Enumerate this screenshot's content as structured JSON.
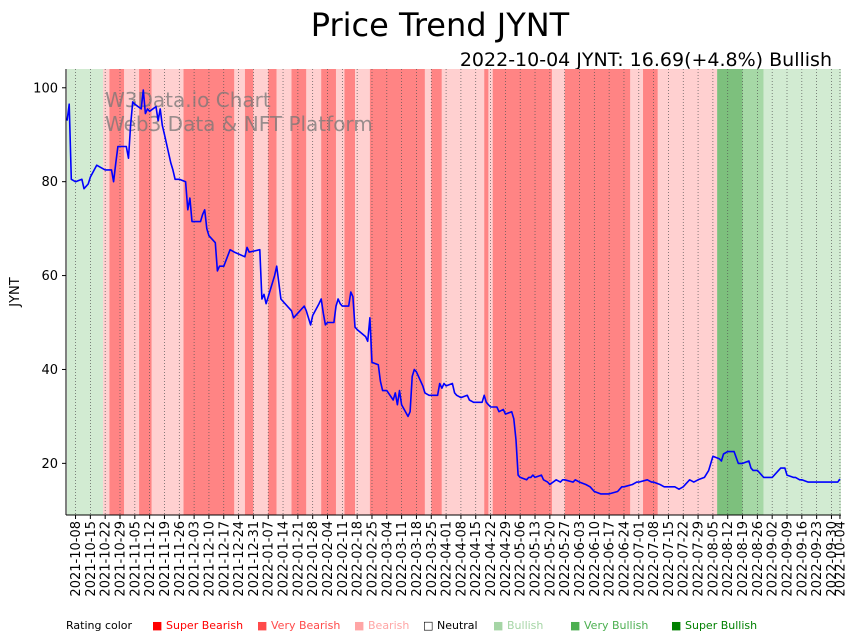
{
  "chart_data": {
    "type": "line",
    "title": "Price Trend JYNT",
    "subtitle": "2022-10-04 JYNT: 16.69(+4.8%) Bullish",
    "ylabel": "JYNT",
    "xlabel": "",
    "ylim": [
      9,
      104
    ],
    "yticks": [
      20,
      40,
      60,
      80,
      100
    ],
    "watermark": [
      "W3Data.io Chart",
      "Web3 Data & NFT Platform"
    ],
    "x_start": "2021-10-04",
    "x_end": "2022-10-04",
    "xticks": [
      "2021-10-08",
      "2021-10-15",
      "2021-10-22",
      "2021-10-29",
      "2021-11-05",
      "2021-11-12",
      "2021-11-19",
      "2021-11-26",
      "2021-12-03",
      "2021-12-10",
      "2021-12-17",
      "2021-12-24",
      "2021-12-31",
      "2022-01-07",
      "2022-01-14",
      "2022-01-21",
      "2022-01-28",
      "2022-02-04",
      "2022-02-11",
      "2022-02-18",
      "2022-02-25",
      "2022-03-04",
      "2022-03-11",
      "2022-03-18",
      "2022-03-25",
      "2022-04-01",
      "2022-04-08",
      "2022-04-15",
      "2022-04-22",
      "2022-04-29",
      "2022-05-06",
      "2022-05-13",
      "2022-05-20",
      "2022-05-27",
      "2022-06-03",
      "2022-06-10",
      "2022-06-17",
      "2022-06-24",
      "2022-07-01",
      "2022-07-08",
      "2022-07-15",
      "2022-07-22",
      "2022-07-29",
      "2022-08-05",
      "2022-08-12",
      "2022-08-19",
      "2022-08-26",
      "2022-09-02",
      "2022-09-09",
      "2022-09-16",
      "2022-09-23",
      "2022-09-30",
      "2022-10-04"
    ],
    "series": [
      {
        "name": "JYNT",
        "color": "#0000ff",
        "points": [
          [
            "2021-10-04",
            93
          ],
          [
            "2021-10-05",
            96.5
          ],
          [
            "2021-10-06",
            80.5
          ],
          [
            "2021-10-08",
            80
          ],
          [
            "2021-10-11",
            80.5
          ],
          [
            "2021-10-12",
            78.5
          ],
          [
            "2021-10-14",
            79.5
          ],
          [
            "2021-10-15",
            81
          ],
          [
            "2021-10-18",
            83.5
          ],
          [
            "2021-10-20",
            83
          ],
          [
            "2021-10-22",
            82.5
          ],
          [
            "2021-10-25",
            82.5
          ],
          [
            "2021-10-26",
            80
          ],
          [
            "2021-10-27",
            84
          ],
          [
            "2021-10-28",
            87.5
          ],
          [
            "2021-11-01",
            87.5
          ],
          [
            "2021-11-02",
            85
          ],
          [
            "2021-11-03",
            92
          ],
          [
            "2021-11-04",
            97
          ],
          [
            "2021-11-05",
            96.5
          ],
          [
            "2021-11-08",
            95.5
          ],
          [
            "2021-11-09",
            99.5
          ],
          [
            "2021-11-10",
            94.5
          ],
          [
            "2021-11-11",
            95.5
          ],
          [
            "2021-11-12",
            95
          ],
          [
            "2021-11-15",
            96
          ],
          [
            "2021-11-16",
            93
          ],
          [
            "2021-11-17",
            95.5
          ],
          [
            "2021-11-18",
            92
          ],
          [
            "2021-11-19",
            90
          ],
          [
            "2021-11-22",
            84
          ],
          [
            "2021-11-23",
            82.5
          ],
          [
            "2021-11-24",
            80.5
          ],
          [
            "2021-11-26",
            80.5
          ],
          [
            "2021-11-29",
            80
          ],
          [
            "2021-11-30",
            74
          ],
          [
            "2021-12-01",
            76.5
          ],
          [
            "2021-12-02",
            71.5
          ],
          [
            "2021-12-06",
            71.5
          ],
          [
            "2021-12-07",
            73
          ],
          [
            "2021-12-08",
            74
          ],
          [
            "2021-12-09",
            70
          ],
          [
            "2021-12-10",
            68.5
          ],
          [
            "2021-12-13",
            67
          ],
          [
            "2021-12-14",
            61
          ],
          [
            "2021-12-15",
            62
          ],
          [
            "2021-12-17",
            62
          ],
          [
            "2021-12-20",
            65.5
          ],
          [
            "2021-12-22",
            65
          ],
          [
            "2021-12-27",
            64
          ],
          [
            "2021-12-28",
            66
          ],
          [
            "2021-12-29",
            65
          ],
          [
            "2022-01-03",
            65.5
          ],
          [
            "2022-01-04",
            55
          ],
          [
            "2022-01-05",
            56
          ],
          [
            "2022-01-06",
            54
          ],
          [
            "2022-01-10",
            60
          ],
          [
            "2022-01-11",
            62
          ],
          [
            "2022-01-13",
            55
          ],
          [
            "2022-01-14",
            54.5
          ],
          [
            "2022-01-18",
            52.5
          ],
          [
            "2022-01-19",
            51
          ],
          [
            "2022-01-21",
            52
          ],
          [
            "2022-01-24",
            53.5
          ],
          [
            "2022-01-25",
            52.5
          ],
          [
            "2022-01-27",
            49.5
          ],
          [
            "2022-01-28",
            51.5
          ],
          [
            "2022-01-31",
            54
          ],
          [
            "2022-02-01",
            55
          ],
          [
            "2022-02-02",
            52
          ],
          [
            "2022-02-03",
            49.5
          ],
          [
            "2022-02-04",
            50
          ],
          [
            "2022-02-07",
            50
          ],
          [
            "2022-02-08",
            53.5
          ],
          [
            "2022-02-09",
            55
          ],
          [
            "2022-02-10",
            54
          ],
          [
            "2022-02-11",
            53.5
          ],
          [
            "2022-02-14",
            53.5
          ],
          [
            "2022-02-15",
            56.5
          ],
          [
            "2022-02-16",
            55.5
          ],
          [
            "2022-02-17",
            49
          ],
          [
            "2022-02-18",
            48.5
          ],
          [
            "2022-02-22",
            47
          ],
          [
            "2022-02-23",
            46
          ],
          [
            "2022-02-24",
            51
          ],
          [
            "2022-02-25",
            41.5
          ],
          [
            "2022-02-28",
            41
          ],
          [
            "2022-03-01",
            37.5
          ],
          [
            "2022-03-02",
            35.5
          ],
          [
            "2022-03-04",
            35.5
          ],
          [
            "2022-03-07",
            33.5
          ],
          [
            "2022-03-08",
            35
          ],
          [
            "2022-03-09",
            32.5
          ],
          [
            "2022-03-10",
            35.5
          ],
          [
            "2022-03-11",
            32.5
          ],
          [
            "2022-03-14",
            30
          ],
          [
            "2022-03-15",
            31
          ],
          [
            "2022-03-16",
            38.5
          ],
          [
            "2022-03-17",
            40
          ],
          [
            "2022-03-18",
            39.5
          ],
          [
            "2022-03-21",
            36.5
          ],
          [
            "2022-03-22",
            35
          ],
          [
            "2022-03-24",
            34.5
          ],
          [
            "2022-03-25",
            34.5
          ],
          [
            "2022-03-28",
            34.5
          ],
          [
            "2022-03-29",
            37
          ],
          [
            "2022-03-30",
            36
          ],
          [
            "2022-03-31",
            37
          ],
          [
            "2022-04-01",
            36.5
          ],
          [
            "2022-04-04",
            37
          ],
          [
            "2022-04-05",
            35
          ],
          [
            "2022-04-06",
            34.5
          ],
          [
            "2022-04-08",
            34
          ],
          [
            "2022-04-11",
            34.5
          ],
          [
            "2022-04-12",
            33.5
          ],
          [
            "2022-04-14",
            33
          ],
          [
            "2022-04-18",
            33
          ],
          [
            "2022-04-19",
            34.5
          ],
          [
            "2022-04-20",
            33
          ],
          [
            "2022-04-21",
            32.5
          ],
          [
            "2022-04-22",
            32
          ],
          [
            "2022-04-25",
            32
          ],
          [
            "2022-04-26",
            31
          ],
          [
            "2022-04-28",
            31.5
          ],
          [
            "2022-04-29",
            30.5
          ],
          [
            "2022-05-02",
            31
          ],
          [
            "2022-05-03",
            29.5
          ],
          [
            "2022-05-04",
            25
          ],
          [
            "2022-05-05",
            17.5
          ],
          [
            "2022-05-06",
            17
          ],
          [
            "2022-05-09",
            16.5
          ],
          [
            "2022-05-10",
            17
          ],
          [
            "2022-05-11",
            17
          ],
          [
            "2022-05-12",
            17.5
          ],
          [
            "2022-05-13",
            17
          ],
          [
            "2022-05-16",
            17.5
          ],
          [
            "2022-05-17",
            16.5
          ],
          [
            "2022-05-19",
            16
          ],
          [
            "2022-05-20",
            15.5
          ],
          [
            "2022-05-23",
            16.5
          ],
          [
            "2022-05-25",
            16
          ],
          [
            "2022-05-26",
            16.5
          ],
          [
            "2022-05-27",
            16.5
          ],
          [
            "2022-05-31",
            16
          ],
          [
            "2022-06-01",
            16.5
          ],
          [
            "2022-06-03",
            16
          ],
          [
            "2022-06-06",
            15.5
          ],
          [
            "2022-06-08",
            15
          ],
          [
            "2022-06-10",
            14
          ],
          [
            "2022-06-13",
            13.5
          ],
          [
            "2022-06-15",
            13.5
          ],
          [
            "2022-06-17",
            13.5
          ],
          [
            "2022-06-21",
            14
          ],
          [
            "2022-06-23",
            15
          ],
          [
            "2022-06-24",
            15
          ],
          [
            "2022-06-28",
            15.5
          ],
          [
            "2022-06-30",
            16
          ],
          [
            "2022-07-01",
            16
          ],
          [
            "2022-07-05",
            16.5
          ],
          [
            "2022-07-07",
            16
          ],
          [
            "2022-07-08",
            16
          ],
          [
            "2022-07-11",
            15.5
          ],
          [
            "2022-07-13",
            15
          ],
          [
            "2022-07-15",
            15
          ],
          [
            "2022-07-18",
            15
          ],
          [
            "2022-07-20",
            14.5
          ],
          [
            "2022-07-22",
            15
          ],
          [
            "2022-07-25",
            16.5
          ],
          [
            "2022-07-27",
            16
          ],
          [
            "2022-07-29",
            16.5
          ],
          [
            "2022-08-01",
            17
          ],
          [
            "2022-08-03",
            18.5
          ],
          [
            "2022-08-05",
            21.5
          ],
          [
            "2022-08-08",
            21
          ],
          [
            "2022-08-09",
            20.5
          ],
          [
            "2022-08-10",
            22
          ],
          [
            "2022-08-12",
            22.5
          ],
          [
            "2022-08-15",
            22.5
          ],
          [
            "2022-08-17",
            20
          ],
          [
            "2022-08-19",
            20
          ],
          [
            "2022-08-22",
            20.5
          ],
          [
            "2022-08-23",
            19
          ],
          [
            "2022-08-24",
            18.5
          ],
          [
            "2022-08-26",
            18.5
          ],
          [
            "2022-08-29",
            17
          ],
          [
            "2022-08-31",
            17
          ],
          [
            "2022-09-02",
            17
          ],
          [
            "2022-09-06",
            19
          ],
          [
            "2022-09-08",
            19
          ],
          [
            "2022-09-09",
            17.5
          ],
          [
            "2022-09-12",
            17
          ],
          [
            "2022-09-13",
            17
          ],
          [
            "2022-09-15",
            16.5
          ],
          [
            "2022-09-16",
            16.5
          ],
          [
            "2022-09-19",
            16
          ],
          [
            "2022-09-21",
            16
          ],
          [
            "2022-09-23",
            16
          ],
          [
            "2022-09-26",
            16
          ],
          [
            "2022-09-28",
            16
          ],
          [
            "2022-09-30",
            16
          ],
          [
            "2022-10-03",
            16
          ],
          [
            "2022-10-04",
            16.69
          ]
        ]
      }
    ],
    "rating_bands": [
      {
        "start": "2021-10-04",
        "end": "2021-10-21",
        "rating": "bullish"
      },
      {
        "start": "2021-10-21",
        "end": "2021-10-24",
        "rating": "bearish"
      },
      {
        "start": "2021-10-24",
        "end": "2021-10-31",
        "rating": "very_bearish"
      },
      {
        "start": "2021-10-31",
        "end": "2021-11-07",
        "rating": "bearish"
      },
      {
        "start": "2021-11-07",
        "end": "2021-11-13",
        "rating": "very_bearish"
      },
      {
        "start": "2021-11-13",
        "end": "2021-11-28",
        "rating": "bearish"
      },
      {
        "start": "2021-11-28",
        "end": "2021-12-22",
        "rating": "very_bearish"
      },
      {
        "start": "2021-12-22",
        "end": "2021-12-27",
        "rating": "bearish"
      },
      {
        "start": "2021-12-27",
        "end": "2021-12-31",
        "rating": "very_bearish"
      },
      {
        "start": "2021-12-31",
        "end": "2022-01-07",
        "rating": "bearish"
      },
      {
        "start": "2022-01-07",
        "end": "2022-01-11",
        "rating": "very_bearish"
      },
      {
        "start": "2022-01-11",
        "end": "2022-01-18",
        "rating": "bearish"
      },
      {
        "start": "2022-01-18",
        "end": "2022-01-25",
        "rating": "very_bearish"
      },
      {
        "start": "2022-01-25",
        "end": "2022-02-01",
        "rating": "bearish"
      },
      {
        "start": "2022-02-01",
        "end": "2022-02-08",
        "rating": "very_bearish"
      },
      {
        "start": "2022-02-08",
        "end": "2022-02-12",
        "rating": "bearish"
      },
      {
        "start": "2022-02-12",
        "end": "2022-02-17",
        "rating": "very_bearish"
      },
      {
        "start": "2022-02-17",
        "end": "2022-02-24",
        "rating": "bearish"
      },
      {
        "start": "2022-02-24",
        "end": "2022-03-22",
        "rating": "very_bearish"
      },
      {
        "start": "2022-03-22",
        "end": "2022-03-25",
        "rating": "bearish"
      },
      {
        "start": "2022-03-25",
        "end": "2022-03-30",
        "rating": "very_bearish"
      },
      {
        "start": "2022-03-30",
        "end": "2022-04-19",
        "rating": "bearish"
      },
      {
        "start": "2022-04-19",
        "end": "2022-04-21",
        "rating": "very_bearish"
      },
      {
        "start": "2022-04-21",
        "end": "2022-04-23",
        "rating": "bearish"
      },
      {
        "start": "2022-04-23",
        "end": "2022-05-21",
        "rating": "very_bearish"
      },
      {
        "start": "2022-05-21",
        "end": "2022-05-27",
        "rating": "bearish"
      },
      {
        "start": "2022-05-27",
        "end": "2022-06-27",
        "rating": "very_bearish"
      },
      {
        "start": "2022-06-27",
        "end": "2022-07-03",
        "rating": "bearish"
      },
      {
        "start": "2022-07-03",
        "end": "2022-07-10",
        "rating": "very_bearish"
      },
      {
        "start": "2022-07-10",
        "end": "2022-08-07",
        "rating": "bearish"
      },
      {
        "start": "2022-08-07",
        "end": "2022-08-19",
        "rating": "super_bullish"
      },
      {
        "start": "2022-08-19",
        "end": "2022-08-23",
        "rating": "very_bullish"
      },
      {
        "start": "2022-08-23",
        "end": "2022-08-29",
        "rating": "very_bullish"
      },
      {
        "start": "2022-08-29",
        "end": "2022-10-05",
        "rating": "bullish"
      }
    ],
    "legend": {
      "title": "Rating color",
      "items": [
        {
          "label": "Super Bearish",
          "color": "#ff0000"
        },
        {
          "label": "Very Bearish",
          "color": "#ff4a4a"
        },
        {
          "label": "Bearish",
          "color": "#ffa5a5"
        },
        {
          "label": "Neutral",
          "color": "#000000"
        },
        {
          "label": "Bullish",
          "color": "#a5d5a5"
        },
        {
          "label": "Very Bullish",
          "color": "#4caf50"
        },
        {
          "label": "Super Bullish",
          "color": "#008000"
        }
      ]
    },
    "band_colors": {
      "bullish": "#d2ebd2",
      "very_bullish": "#a6d8a6",
      "super_bullish": "#7dc07d",
      "bearish": "#ffd0d0",
      "very_bearish": "#ff8484",
      "super_bearish": "#ff4040"
    }
  }
}
